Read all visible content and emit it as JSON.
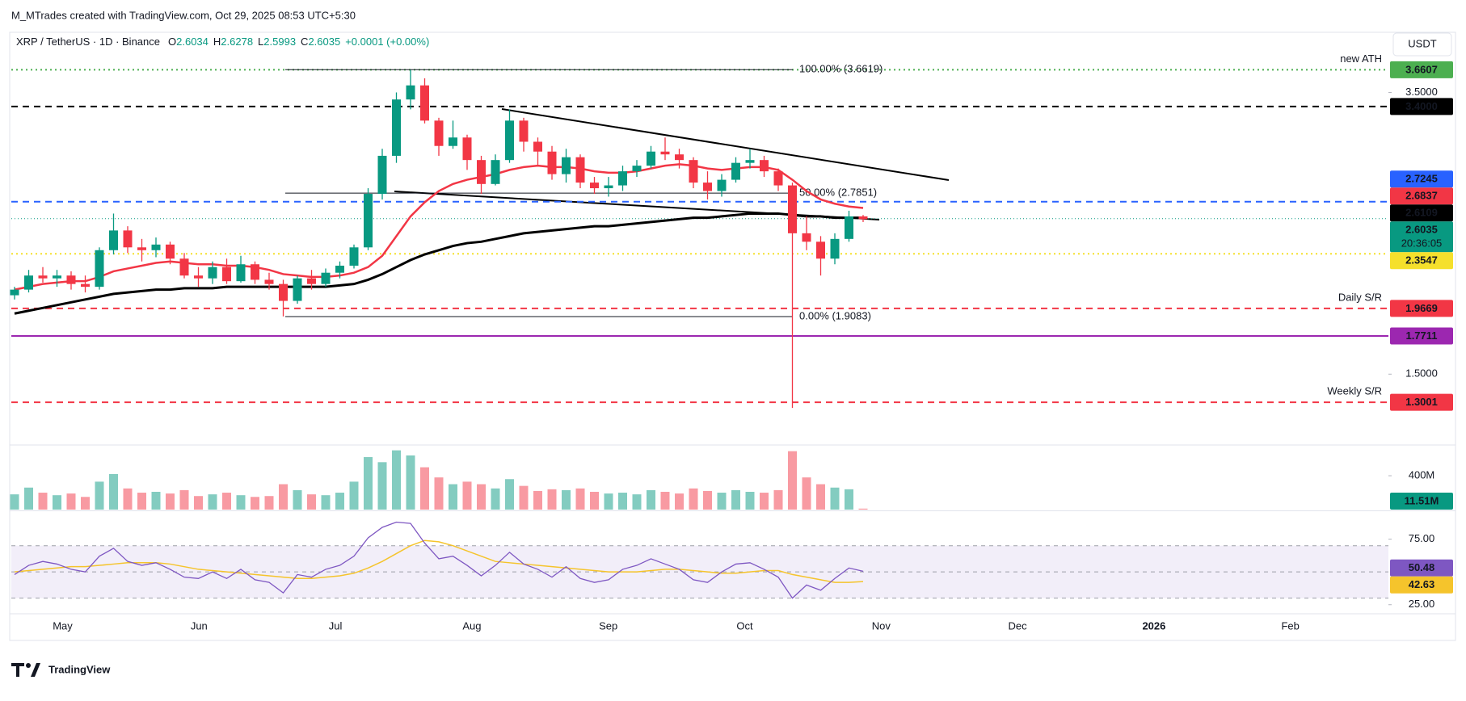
{
  "header": {
    "attribution": "M_MTrades created with TradingView.com, Oct 29, 2025 08:53 UTC+5:30"
  },
  "chart_data": {
    "type": "candlestick",
    "symbol": "XRP / TetherUS · 1D · Binance",
    "ohlc_legend": [
      {
        "key": "O",
        "value": 2.6034
      },
      {
        "key": "H",
        "value": 2.6278
      },
      {
        "key": "L",
        "value": 2.5993
      },
      {
        "key": "C",
        "value": 2.6035
      }
    ],
    "change": "+0.0001 (+0.00%)",
    "currency": "USDT",
    "x_labels": [
      "May",
      "Jun",
      "Jul",
      "Aug",
      "Sep",
      "Oct",
      "Nov",
      "Dec",
      "2026",
      "Feb"
    ],
    "ylim": [
      1.005,
      3.924
    ],
    "yticks": [
      {
        "value": 3.5,
        "label": "3.5000"
      },
      {
        "value": 1.5,
        "label": "1.5000"
      }
    ],
    "candles": {
      "up_color": "#089981",
      "down_color": "#f23645",
      "open": [
        2.06,
        2.1,
        2.2,
        2.18,
        2.2,
        2.14,
        2.12,
        2.38,
        2.52,
        2.4,
        2.38,
        2.42,
        2.32,
        2.2,
        2.18,
        2.26,
        2.16,
        2.28,
        2.17,
        2.14,
        2.02,
        2.18,
        2.14,
        2.22,
        2.27,
        2.4,
        2.78,
        3.05,
        3.45,
        3.55,
        3.3,
        3.12,
        3.18,
        3.02,
        2.85,
        3.02,
        3.3,
        3.15,
        3.08,
        2.92,
        3.04,
        2.86,
        2.82,
        2.84,
        2.94,
        2.98,
        3.08,
        3.06,
        3.02,
        2.86,
        2.8,
        2.88,
        3.0,
        3.02,
        2.94,
        2.84,
        2.5,
        2.44,
        2.32,
        2.46,
        2.62
      ],
      "high": [
        2.12,
        2.24,
        2.26,
        2.24,
        2.23,
        2.2,
        2.4,
        2.64,
        2.55,
        2.46,
        2.47,
        2.44,
        2.36,
        2.26,
        2.3,
        2.32,
        2.34,
        2.3,
        2.22,
        2.17,
        2.2,
        2.24,
        2.25,
        2.3,
        2.42,
        2.82,
        3.1,
        3.5,
        3.66,
        3.6,
        3.32,
        3.3,
        3.2,
        3.05,
        3.06,
        3.38,
        3.32,
        3.18,
        3.12,
        3.1,
        3.06,
        2.9,
        2.9,
        2.98,
        3.02,
        3.12,
        3.18,
        3.1,
        3.04,
        2.94,
        2.92,
        3.04,
        3.1,
        3.05,
        2.96,
        2.86,
        2.62,
        2.48,
        2.5,
        2.66,
        2.63
      ],
      "low": [
        2.03,
        2.08,
        2.15,
        2.12,
        2.1,
        2.08,
        2.1,
        2.35,
        2.36,
        2.3,
        2.33,
        2.28,
        2.18,
        2.12,
        2.14,
        2.14,
        2.15,
        2.14,
        2.1,
        1.91,
        2.0,
        2.1,
        2.12,
        2.18,
        2.25,
        2.38,
        2.74,
        3.0,
        3.38,
        3.28,
        3.05,
        3.1,
        2.95,
        2.78,
        2.84,
        3.0,
        3.08,
        2.98,
        2.88,
        2.86,
        2.82,
        2.78,
        2.76,
        2.8,
        2.9,
        2.96,
        3.02,
        2.96,
        2.82,
        2.74,
        2.76,
        2.86,
        2.96,
        2.9,
        2.8,
        1.26,
        2.38,
        2.2,
        2.28,
        2.44,
        2.58
      ],
      "close": [
        2.1,
        2.2,
        2.18,
        2.2,
        2.14,
        2.12,
        2.38,
        2.52,
        2.4,
        2.38,
        2.42,
        2.32,
        2.2,
        2.18,
        2.26,
        2.16,
        2.28,
        2.17,
        2.14,
        2.02,
        2.18,
        2.14,
        2.22,
        2.27,
        2.4,
        2.78,
        3.05,
        3.45,
        3.55,
        3.3,
        3.12,
        3.18,
        3.02,
        2.85,
        3.02,
        3.3,
        3.15,
        3.08,
        2.92,
        3.04,
        2.86,
        2.82,
        2.84,
        2.94,
        2.98,
        3.08,
        3.06,
        3.02,
        2.86,
        2.8,
        2.88,
        3.0,
        3.02,
        2.94,
        2.84,
        2.5,
        2.44,
        2.32,
        2.46,
        2.62,
        2.6
      ]
    },
    "moving_averages": [
      {
        "color": "#f23645",
        "label_value": 2.6837,
        "values": [
          2.1,
          2.12,
          2.14,
          2.15,
          2.16,
          2.16,
          2.19,
          2.23,
          2.25,
          2.27,
          2.29,
          2.3,
          2.29,
          2.28,
          2.28,
          2.27,
          2.27,
          2.26,
          2.24,
          2.21,
          2.2,
          2.19,
          2.19,
          2.2,
          2.22,
          2.26,
          2.34,
          2.48,
          2.62,
          2.72,
          2.8,
          2.85,
          2.88,
          2.9,
          2.92,
          2.95,
          2.97,
          2.98,
          2.97,
          2.97,
          2.96,
          2.94,
          2.93,
          2.93,
          2.94,
          2.96,
          2.98,
          2.99,
          2.98,
          2.96,
          2.95,
          2.96,
          2.97,
          2.97,
          2.95,
          2.88,
          2.8,
          2.74,
          2.71,
          2.69,
          2.68
        ]
      },
      {
        "color": "#000000",
        "label_value": 2.6109,
        "values": [
          1.93,
          1.95,
          1.97,
          1.99,
          2.01,
          2.03,
          2.05,
          2.07,
          2.08,
          2.09,
          2.1,
          2.1,
          2.11,
          2.11,
          2.11,
          2.12,
          2.12,
          2.12,
          2.12,
          2.12,
          2.12,
          2.12,
          2.12,
          2.13,
          2.14,
          2.17,
          2.21,
          2.26,
          2.31,
          2.35,
          2.38,
          2.41,
          2.43,
          2.44,
          2.46,
          2.48,
          2.5,
          2.51,
          2.52,
          2.53,
          2.54,
          2.55,
          2.55,
          2.56,
          2.57,
          2.58,
          2.59,
          2.6,
          2.61,
          2.61,
          2.62,
          2.63,
          2.64,
          2.64,
          2.64,
          2.63,
          2.62,
          2.62,
          2.61,
          2.61,
          2.61
        ]
      }
    ],
    "levels": [
      {
        "price": 3.6607,
        "color": "#4caf50",
        "line": "dotted",
        "note": "new ATH"
      },
      {
        "price": {
          "value": 3.4,
          "label": "3.4000"
        },
        "color": "#000000",
        "line": "dashed"
      },
      {
        "price": 2.7245,
        "color": "#2962ff",
        "line": "dashed"
      },
      {
        "price": 2.3547,
        "color": "#f5e02c",
        "text_color": "#131722",
        "line": "dotted"
      },
      {
        "price": 1.9669,
        "color": "#f23645",
        "line": "dashed",
        "note": "Daily S/R"
      },
      {
        "price": 1.7711,
        "color": "#9c27b0",
        "line": "solid"
      },
      {
        "price": 1.3001,
        "color": "#f23645",
        "line": "dashed",
        "note": "Weekly S/R"
      }
    ],
    "fib_levels": [
      {
        "value": 3.6619,
        "label": "100.00% (3.6619)"
      },
      {
        "value": 2.7851,
        "label": "50.00% (2.7851)"
      },
      {
        "value": 1.9083,
        "label": "0.00% (1.9083)"
      }
    ],
    "last_price": 2.6035,
    "last_price_color": "#089981",
    "countdown": "20:36:05",
    "volume": {
      "ylim": [
        0,
        725
      ],
      "yticks": [
        {
          "value": 400,
          "label": "400M"
        }
      ],
      "last_value_label": "11.51M",
      "values": [
        180,
        260,
        200,
        170,
        190,
        150,
        330,
        420,
        250,
        200,
        210,
        190,
        230,
        160,
        180,
        200,
        170,
        150,
        160,
        300,
        230,
        180,
        170,
        200,
        330,
        620,
        560,
        700,
        640,
        500,
        380,
        300,
        330,
        300,
        250,
        360,
        280,
        220,
        240,
        230,
        250,
        210,
        190,
        200,
        180,
        230,
        210,
        190,
        250,
        220,
        200,
        230,
        210,
        200,
        230,
        690,
        380,
        300,
        260,
        240,
        11.51
      ]
    },
    "rsi": {
      "color": "#7e57c2",
      "ylim": [
        19.3,
        95.7
      ],
      "yticks": [
        {
          "value": 75,
          "label": "75.00"
        },
        {
          "value": 25,
          "label": "25.00"
        }
      ],
      "bands": [
        70,
        50,
        30
      ],
      "values": [
        48,
        55,
        58,
        56,
        52,
        50,
        62,
        68,
        58,
        55,
        57,
        52,
        46,
        45,
        50,
        45,
        52,
        44,
        42,
        34,
        48,
        46,
        52,
        55,
        62,
        76,
        84,
        88,
        87,
        72,
        60,
        62,
        55,
        47,
        55,
        65,
        56,
        52,
        46,
        54,
        45,
        42,
        44,
        52,
        55,
        60,
        56,
        52,
        44,
        42,
        50,
        56,
        57,
        52,
        46,
        30,
        40,
        36,
        45,
        53,
        50.48
      ],
      "ma": {
        "color": "#f5c42c",
        "values": [
          50,
          51,
          52,
          53,
          54,
          54,
          55,
          56,
          57,
          57,
          57,
          56,
          54,
          52,
          51,
          50,
          49,
          48,
          47,
          46,
          45,
          45,
          46,
          47,
          49,
          53,
          58,
          64,
          70,
          74,
          73,
          70,
          66,
          62,
          58,
          57,
          56,
          55,
          54,
          53,
          52,
          51,
          50,
          50,
          50,
          51,
          52,
          52,
          51,
          50,
          49,
          49,
          50,
          51,
          51,
          48,
          46,
          44,
          42,
          42,
          42.63
        ]
      }
    }
  },
  "footer": {
    "brand": "TradingView"
  }
}
